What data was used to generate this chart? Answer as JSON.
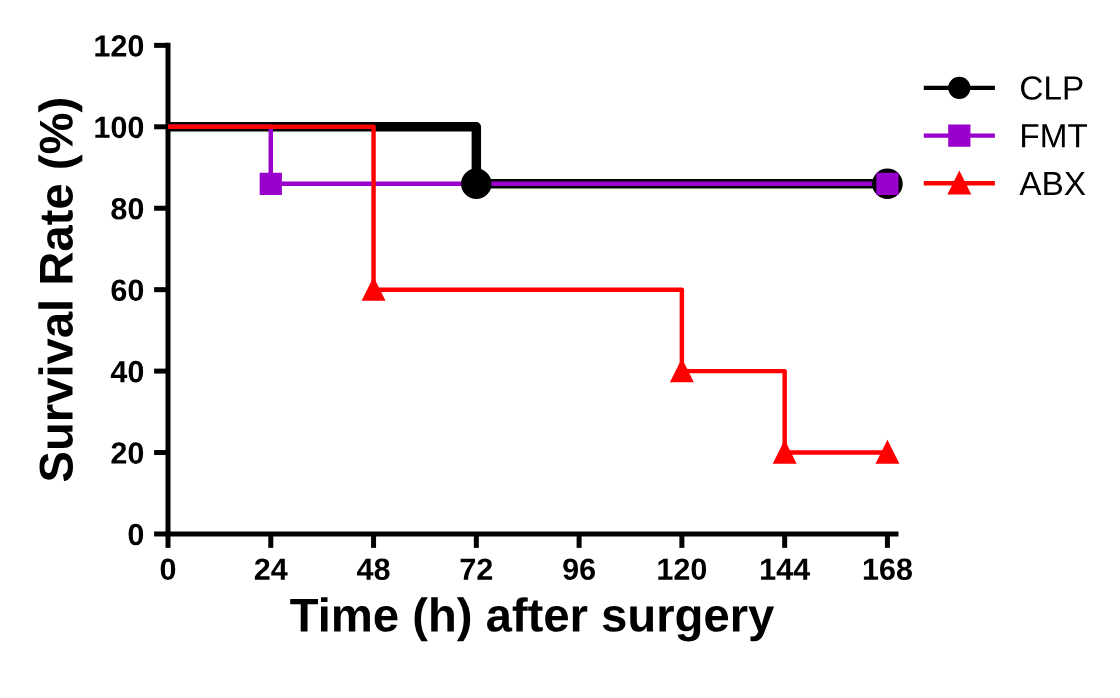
{
  "chart_data": {
    "type": "step",
    "xlabel": "Time (h) after surgery",
    "ylabel": "Survival Rate (%)",
    "xlim": [
      0,
      170
    ],
    "xticks": [
      0,
      24,
      48,
      72,
      96,
      120,
      144,
      168
    ],
    "ylim": [
      0,
      120
    ],
    "yticks": [
      0,
      20,
      40,
      60,
      80,
      100,
      120
    ],
    "grid": false,
    "legend": "top right",
    "series": [
      {
        "name": "CLP",
        "color": "#000000",
        "marker": "circle",
        "x": [
          0,
          72,
          168
        ],
        "values": [
          100,
          86,
          86
        ]
      },
      {
        "name": "FMT",
        "color": "#9900cc",
        "marker": "square",
        "x": [
          0,
          24,
          168
        ],
        "values": [
          100,
          86,
          86
        ]
      },
      {
        "name": "ABX",
        "color": "#ff0000",
        "marker": "triangle",
        "x": [
          0,
          48,
          120,
          144,
          168
        ],
        "values": [
          100,
          60,
          40,
          20,
          20
        ]
      }
    ]
  }
}
